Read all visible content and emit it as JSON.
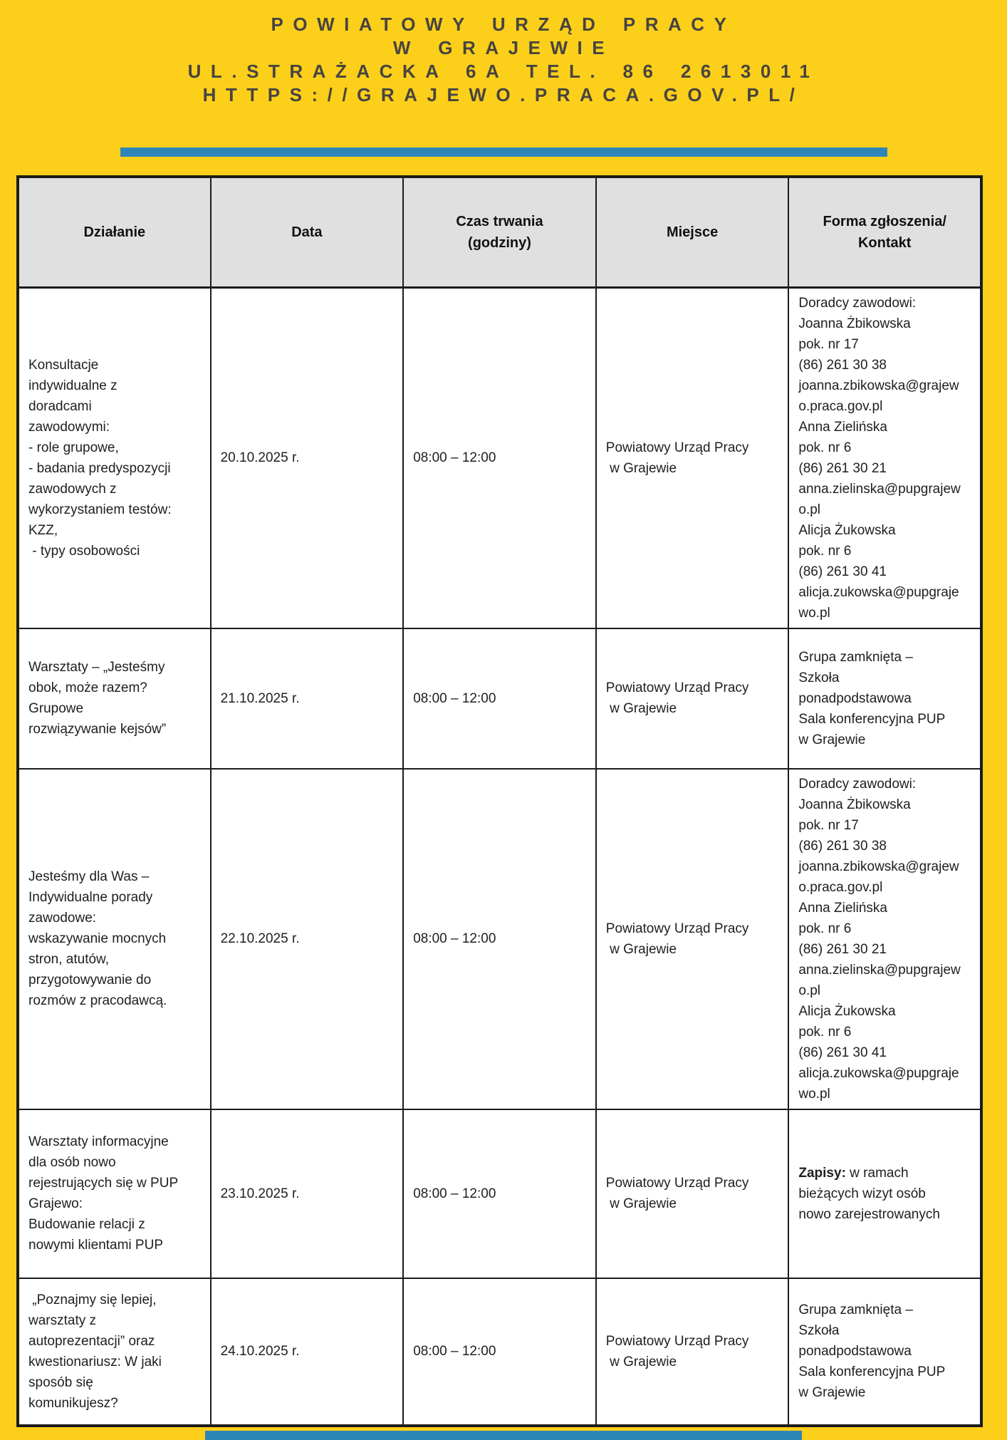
{
  "page": {
    "title_lines": [
      "POWIATOWY URZĄD PRACY",
      "W GRAJEWIE",
      "UL.STRAŻACKA 6A TEL. 86 2613011",
      "HTTPS://GRAJEWO.PRACA.GOV.PL/"
    ]
  },
  "colors": {
    "background": "#FCCF1B",
    "accent_bar": "#2E86B8",
    "header_text": "#474440",
    "table_header_bg": "#E0E0E0",
    "table_border": "#1B1B1B",
    "body_text": "#202020"
  },
  "table": {
    "columns": [
      "Działanie",
      "Data",
      "Czas trwania\n(godziny)",
      "Miejsce",
      "Forma zgłoszenia/\nKontakt"
    ],
    "rows": [
      {
        "dzialanie": "Konsultacje\nindywidualne z\ndoradcami\nzawodowymi:\n- role grupowe,\n- badania predyspozycji\nzawodowych z\nwykorzystaniem testów:\nKZZ,\n - typy osobowości",
        "data": "20.10.2025 r.",
        "czas": "08:00 – 12:00",
        "miejsce": "Powiatowy Urząd Pracy\n w Grajewie",
        "kontakt": "Doradcy zawodowi:\nJoanna Żbikowska\npok. nr 17\n(86) 261 30 38\njoanna.zbikowska@grajew\no.praca.gov.pl\nAnna Zielińska\npok. nr 6\n(86) 261 30 21\nanna.zielinska@pupgrajew\no.pl\nAlicja Żukowska\npok. nr 6\n(86) 261 30 41\nalicja.zukowska@pupgraje\nwo.pl"
      },
      {
        "dzialanie": "Warsztaty – „Jesteśmy\nobok, może razem?\nGrupowe\nrozwiązywanie kejsów”",
        "data": "21.10.2025 r.",
        "czas": "08:00 – 12:00",
        "miejsce": "Powiatowy Urząd Pracy\n w Grajewie",
        "kontakt": "Grupa zamknięta –\nSzkoła\nponadpodstawowa\nSala konferencyjna PUP\nw Grajewie"
      },
      {
        "dzialanie": "Jesteśmy dla Was –\nIndywidualne porady\nzawodowe:\nwskazywanie mocnych\nstron, atutów,\nprzygotowywanie do\nrozmów z pracodawcą.",
        "data": "22.10.2025 r.",
        "czas": "08:00 – 12:00",
        "miejsce": "Powiatowy Urząd Pracy\n w Grajewie",
        "kontakt": "Doradcy zawodowi:\nJoanna Żbikowska\npok. nr 17\n(86) 261 30 38\njoanna.zbikowska@grajew\no.praca.gov.pl\nAnna Zielińska\npok. nr 6\n(86) 261 30 21\nanna.zielinska@pupgrajew\no.pl\nAlicja Żukowska\npok. nr 6\n(86) 261 30 41\nalicja.zukowska@pupgraje\nwo.pl"
      },
      {
        "dzialanie": "Warsztaty informacyjne\ndla osób nowo\nrejestrujących się w PUP\nGrajewo:\nBudowanie relacji z\nnowymi klientami PUP",
        "data": "23.10.2025 r.",
        "czas": "08:00 – 12:00",
        "miejsce": "Powiatowy Urząd Pracy\n w Grajewie",
        "kontakt_bold": "Zapisy:",
        "kontakt": " w ramach\nbieżących wizyt osób\nnowo zarejestrowanych"
      },
      {
        "dzialanie": " „Poznajmy się lepiej,\nwarsztaty z\nautoprezentacji” oraz\nkwestionariusz: W jaki\nsposób się\nkomunikujesz?",
        "data": "24.10.2025 r.",
        "czas": "08:00 – 12:00",
        "miejsce": "Powiatowy Urząd Pracy\n w Grajewie",
        "kontakt": "Grupa zamknięta –\nSzkoła\nponadpodstawowa\nSala konferencyjna PUP\nw Grajewie"
      }
    ]
  }
}
